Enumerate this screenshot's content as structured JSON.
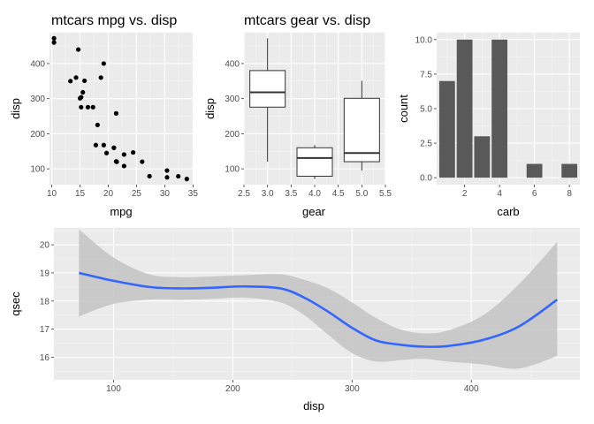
{
  "colors": {
    "panel": "#ebebeb",
    "grid_major": "#ffffff",
    "grid_minor": "#f4f4f4",
    "point": "#000000",
    "bar": "#595959",
    "smooth_line": "#3366ff",
    "ribbon": "#c3c3c3"
  },
  "chart_data": [
    {
      "type": "scatter",
      "title": "mtcars mpg vs. disp",
      "xlabel": "mpg",
      "ylabel": "disp",
      "xlim": [
        9.6,
        35.1
      ],
      "ylim": [
        55,
        488
      ],
      "xticks": [
        10,
        15,
        20,
        25,
        30,
        35
      ],
      "yticks": [
        100,
        200,
        300,
        400
      ],
      "grid": true,
      "points": [
        {
          "x": 21.0,
          "y": 160
        },
        {
          "x": 21.0,
          "y": 160
        },
        {
          "x": 22.8,
          "y": 108
        },
        {
          "x": 21.4,
          "y": 258
        },
        {
          "x": 18.7,
          "y": 360
        },
        {
          "x": 18.1,
          "y": 225
        },
        {
          "x": 14.3,
          "y": 360
        },
        {
          "x": 24.4,
          "y": 146.7
        },
        {
          "x": 22.8,
          "y": 140.8
        },
        {
          "x": 19.2,
          "y": 167.6
        },
        {
          "x": 17.8,
          "y": 167.6
        },
        {
          "x": 16.4,
          "y": 275.8
        },
        {
          "x": 17.3,
          "y": 275.8
        },
        {
          "x": 15.2,
          "y": 275.8
        },
        {
          "x": 10.4,
          "y": 472
        },
        {
          "x": 10.4,
          "y": 460
        },
        {
          "x": 14.7,
          "y": 440
        },
        {
          "x": 32.4,
          "y": 78.7
        },
        {
          "x": 30.4,
          "y": 75.7
        },
        {
          "x": 33.9,
          "y": 71.1
        },
        {
          "x": 21.5,
          "y": 120.1
        },
        {
          "x": 15.5,
          "y": 318
        },
        {
          "x": 15.2,
          "y": 304
        },
        {
          "x": 13.3,
          "y": 350
        },
        {
          "x": 19.2,
          "y": 400
        },
        {
          "x": 27.3,
          "y": 79
        },
        {
          "x": 26.0,
          "y": 120.3
        },
        {
          "x": 30.4,
          "y": 95.1
        },
        {
          "x": 15.8,
          "y": 351
        },
        {
          "x": 19.7,
          "y": 145
        },
        {
          "x": 15.0,
          "y": 301
        },
        {
          "x": 21.4,
          "y": 121
        }
      ]
    },
    {
      "type": "boxplot",
      "title": "mtcars gear vs. disp",
      "xlabel": "gear",
      "ylabel": "disp",
      "xlim": [
        2.5,
        5.5
      ],
      "ylim": [
        55,
        488
      ],
      "xticks": [
        "2.5",
        "3.0",
        "3.5",
        "4.0",
        "4.5",
        "5.0",
        "5.5"
      ],
      "yticks": [
        100,
        200,
        300,
        400
      ],
      "grid": true,
      "boxes": [
        {
          "x": 3,
          "min": 120.1,
          "q1": 275.8,
          "median": 318,
          "q3": 380,
          "max": 472
        },
        {
          "x": 4,
          "min": 71.1,
          "q1": 78.9,
          "median": 130.9,
          "q3": 160,
          "max": 167.6
        },
        {
          "x": 5,
          "min": 95.1,
          "q1": 120.3,
          "median": 145,
          "q3": 301,
          "max": 351
        }
      ]
    },
    {
      "type": "bar",
      "xlabel": "carb",
      "ylabel": "count",
      "xlim": [
        0.4,
        8.6
      ],
      "ylim": [
        -0.5,
        10.5
      ],
      "xticks": [
        "2",
        "4",
        "6",
        "8"
      ],
      "yticks": [
        "0.0",
        "2.5",
        "5.0",
        "7.5",
        "10.0"
      ],
      "grid": true,
      "categories": [
        1,
        2,
        3,
        4,
        6,
        8
      ],
      "values": [
        7,
        10,
        3,
        10,
        1,
        1
      ]
    },
    {
      "type": "line",
      "subtype": "smooth with confidence band",
      "xlabel": "disp",
      "ylabel": "qsec",
      "xlim": [
        50,
        491
      ],
      "ylim": [
        15.2,
        20.6
      ],
      "xticks": [
        100,
        200,
        300,
        400
      ],
      "yticks": [
        16,
        17,
        18,
        19,
        20
      ],
      "grid": true,
      "x": [
        71,
        100,
        130,
        155,
        180,
        210,
        240,
        260,
        280,
        300,
        320,
        340,
        360,
        380,
        410,
        440,
        472
      ],
      "y": [
        19.0,
        18.72,
        18.5,
        18.45,
        18.47,
        18.52,
        18.45,
        18.12,
        17.62,
        17.05,
        16.6,
        16.45,
        16.38,
        16.4,
        16.62,
        17.1,
        18.05
      ],
      "lower": [
        17.45,
        17.9,
        18.05,
        18.05,
        18.07,
        18.12,
        17.95,
        17.5,
        16.8,
        16.15,
        15.85,
        15.9,
        15.95,
        15.85,
        15.75,
        15.6,
        16.05
      ],
      "upper": [
        20.55,
        19.55,
        18.95,
        18.85,
        18.87,
        18.92,
        18.95,
        18.75,
        18.45,
        17.95,
        17.4,
        17.0,
        16.85,
        16.95,
        17.5,
        18.6,
        20.1
      ]
    }
  ]
}
